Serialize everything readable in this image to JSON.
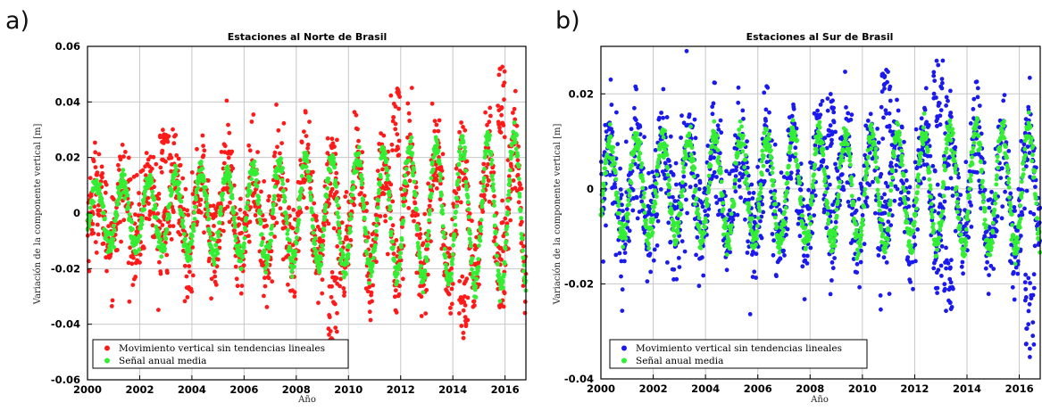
{
  "chart_data": [
    {
      "type": "scatter",
      "panel_label": "a)",
      "title": "Estaciones al Norte de Brasil",
      "xlabel": "Año",
      "ylabel": "Variación de la componente vertical [m]",
      "xlim": [
        2000,
        2016.8
      ],
      "ylim": [
        -0.06,
        0.06
      ],
      "xticks": [
        "2000",
        "2002",
        "2004",
        "2006",
        "2008",
        "2010",
        "2012",
        "2014",
        "2016"
      ],
      "yticks": [
        "-0.06",
        "-0.04",
        "-0.02",
        "0",
        "0.02",
        "0.04",
        "0.06"
      ],
      "grid": true,
      "legend_position": "bottom-left",
      "series": [
        {
          "name": "Movimiento vertical sin tendencias lineales",
          "color": "#ff1a1a",
          "kind": "detrended",
          "amp_start": 0.008,
          "amp_end": 0.026,
          "noise": 0.009,
          "spikes": [
            [
              2002.95,
              0.03
            ],
            [
              2009.4,
              -0.047
            ],
            [
              2011.8,
              0.046
            ],
            [
              2014.4,
              -0.045
            ],
            [
              2015.9,
              0.053
            ]
          ]
        },
        {
          "name": "Señal anual media",
          "color": "#33ee33",
          "kind": "annual",
          "amp_start": 0.01,
          "amp_end": 0.028,
          "noise": 0.002
        }
      ]
    },
    {
      "type": "scatter",
      "panel_label": "b)",
      "title": "Estaciones al Sur de Brasil",
      "xlabel": "Año",
      "ylabel": "Variación de la componente vertical [m]",
      "xlim": [
        2000,
        2016.8
      ],
      "ylim": [
        -0.04,
        0.03
      ],
      "xticks": [
        "2000",
        "2002",
        "2004",
        "2006",
        "2008",
        "2010",
        "2012",
        "2014",
        "2016"
      ],
      "yticks": [
        "-0.04",
        "-0.02",
        "0",
        "0.02"
      ],
      "grid": true,
      "legend_position": "bottom-left",
      "series": [
        {
          "name": "Movimiento vertical sin tendencias lineales",
          "color": "#1a1aee",
          "kind": "detrended",
          "amp_start": 0.008,
          "amp_end": 0.012,
          "noise": 0.006,
          "spikes": [
            [
              2008.8,
              0.02
            ],
            [
              2010.9,
              0.026
            ],
            [
              2012.9,
              0.027
            ],
            [
              2013.3,
              -0.027
            ],
            [
              2016.4,
              -0.037
            ]
          ]
        },
        {
          "name": "Señal anual media",
          "color": "#33ee33",
          "kind": "annual",
          "amp_start": 0.01,
          "amp_end": 0.013,
          "noise": 0.0015
        }
      ]
    }
  ]
}
